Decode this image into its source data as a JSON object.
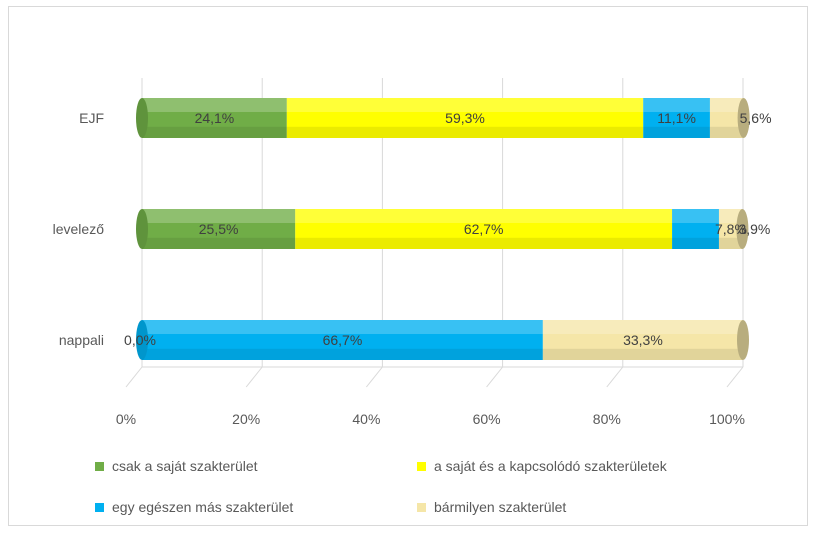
{
  "chart_data": {
    "type": "bar",
    "orientation": "horizontal",
    "stacked": "percent",
    "categories": [
      "EJF",
      "levelező",
      "nappali"
    ],
    "series": [
      {
        "name": "csak a saját szakterület",
        "color": "#70ad47",
        "values": [
          24.1,
          25.5,
          0.0
        ],
        "labels": [
          "24,1%",
          "25,5%",
          "0,0%"
        ]
      },
      {
        "name": "a saját és a kapcsolódó szakterületek",
        "color": "#ffff00",
        "values": [
          59.3,
          62.7,
          0.0
        ],
        "labels": [
          "59,3%",
          "62,7%",
          ""
        ]
      },
      {
        "name": "egy egészen más szakterület",
        "color": "#00b0f0",
        "values": [
          11.1,
          7.8,
          66.7
        ],
        "labels": [
          "11,1%",
          "7,8%",
          "66,7%"
        ]
      },
      {
        "name": "bármilyen szakterület",
        "color": "#f5e6a8",
        "values": [
          5.6,
          3.9,
          33.3
        ],
        "labels": [
          "5,6%",
          "3,9%",
          "33,3%"
        ]
      }
    ],
    "xticks": [
      "0%",
      "20%",
      "40%",
      "60%",
      "80%",
      "100%"
    ],
    "xlim": [
      0,
      100
    ],
    "grid": true,
    "legend_position": "bottom"
  }
}
